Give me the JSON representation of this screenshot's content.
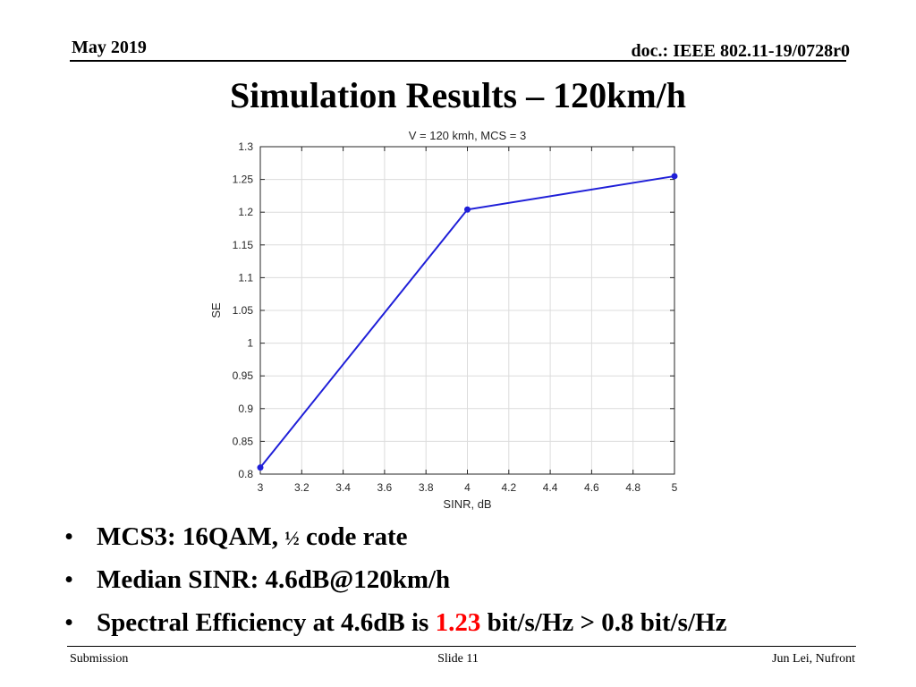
{
  "header": {
    "date": "May 2019",
    "doc_id": "doc.: IEEE 802.11-19/0728r0"
  },
  "slide_title": "Simulation Results – 120km/h",
  "chart_data": {
    "type": "line",
    "title": "V = 120 kmh, MCS = 3",
    "xlabel": "SINR, dB",
    "ylabel": "SE",
    "x": [
      3,
      4,
      5
    ],
    "series": [
      {
        "values": [
          0.81,
          1.204,
          1.255
        ],
        "color": "#1f1fd8"
      }
    ],
    "xlim": [
      3,
      5
    ],
    "ylim": [
      0.8,
      1.3
    ],
    "xticks": [
      3,
      3.2,
      3.4,
      3.6,
      3.8,
      4,
      4.2,
      4.4,
      4.6,
      4.8,
      5
    ],
    "xtick_labels": [
      "3",
      "3.2",
      "3.4",
      "3.6",
      "3.8",
      "4",
      "4.2",
      "4.4",
      "4.6",
      "4.8",
      "5"
    ],
    "yticks": [
      0.8,
      0.85,
      0.9,
      0.95,
      1,
      1.05,
      1.1,
      1.15,
      1.2,
      1.25,
      1.3
    ],
    "ytick_labels": [
      "0.8",
      "0.85",
      "0.9",
      "0.95",
      "1",
      "1.05",
      "1.1",
      "1.15",
      "1.2",
      "1.25",
      "1.3"
    ],
    "grid": true
  },
  "bullets": {
    "b1": {
      "prefix": "MCS3:  16QAM, ",
      "fraction": "½",
      "suffix": " code rate"
    },
    "b2": {
      "text": "Median SINR:  4.6dB@120km/h"
    },
    "b3": {
      "prefix": "Spectral Efficiency at 4.6dB  is ",
      "highlight": "1.23",
      "suffix": " bit/s/Hz  > 0.8 bit/s/Hz",
      "highlight_color": "#ff0000"
    },
    "marker": "•"
  },
  "footer": {
    "left": "Submission",
    "center": "Slide 11",
    "right": "Jun Lei, Nufront"
  }
}
